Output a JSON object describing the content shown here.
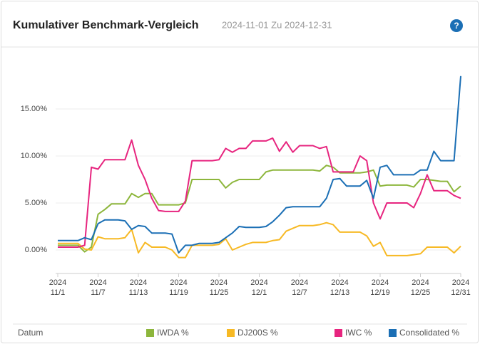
{
  "header": {
    "title": "Kumulativer Benchmark-Vergleich",
    "subtitle": "2024-11-01 Zu 2024-12-31",
    "help": "?"
  },
  "chart_data": {
    "type": "line",
    "x_label": "Datum",
    "x": [
      "2024-11-01",
      "2024-11-02",
      "2024-11-03",
      "2024-11-04",
      "2024-11-05",
      "2024-11-06",
      "2024-11-07",
      "2024-11-08",
      "2024-11-09",
      "2024-11-10",
      "2024-11-11",
      "2024-11-12",
      "2024-11-13",
      "2024-11-14",
      "2024-11-15",
      "2024-11-16",
      "2024-11-17",
      "2024-11-18",
      "2024-11-19",
      "2024-11-20",
      "2024-11-21",
      "2024-11-22",
      "2024-11-23",
      "2024-11-24",
      "2024-11-25",
      "2024-11-26",
      "2024-11-27",
      "2024-11-28",
      "2024-11-29",
      "2024-11-30",
      "2024-12-01",
      "2024-12-02",
      "2024-12-03",
      "2024-12-04",
      "2024-12-05",
      "2024-12-06",
      "2024-12-07",
      "2024-12-08",
      "2024-12-09",
      "2024-12-10",
      "2024-12-11",
      "2024-12-12",
      "2024-12-13",
      "2024-12-14",
      "2024-12-15",
      "2024-12-16",
      "2024-12-17",
      "2024-12-18",
      "2024-12-19",
      "2024-12-20",
      "2024-12-21",
      "2024-12-22",
      "2024-12-23",
      "2024-12-24",
      "2024-12-25",
      "2024-12-26",
      "2024-12-27",
      "2024-12-28",
      "2024-12-29",
      "2024-12-30",
      "2024-12-31"
    ],
    "xlim": [
      "2024-11-01",
      "2024-12-31"
    ],
    "xticks": [
      {
        "value": "2024-11-01",
        "label": "2024 11/1"
      },
      {
        "value": "2024-11-07",
        "label": "2024 11/7"
      },
      {
        "value": "2024-11-13",
        "label": "2024 11/13"
      },
      {
        "value": "2024-11-19",
        "label": "2024 11/19"
      },
      {
        "value": "2024-11-25",
        "label": "2024 11/25"
      },
      {
        "value": "2024-12-01",
        "label": "2024 12/1"
      },
      {
        "value": "2024-12-07",
        "label": "2024 12/7"
      },
      {
        "value": "2024-12-13",
        "label": "2024 12/13"
      },
      {
        "value": "2024-12-19",
        "label": "2024 12/19"
      },
      {
        "value": "2024-12-25",
        "label": "2024 12/25"
      },
      {
        "value": "2024-12-31",
        "label": "2024 12/31"
      }
    ],
    "ylim": [
      -2.5,
      20
    ],
    "yticks": [
      {
        "value": 0,
        "label": "0.00%"
      },
      {
        "value": 5,
        "label": "5.00%"
      },
      {
        "value": 10,
        "label": "10.00%"
      },
      {
        "value": 15,
        "label": "15.00%"
      }
    ],
    "grid": true,
    "legend_position": "bottom",
    "series": [
      {
        "name": "IWDA %",
        "color": "#8db63c",
        "values": [
          0.5,
          0.5,
          0.5,
          0.5,
          -0.2,
          0.3,
          3.8,
          4.3,
          4.9,
          4.9,
          4.9,
          6.0,
          5.6,
          6.0,
          6.0,
          4.8,
          4.8,
          4.8,
          4.8,
          5.0,
          7.5,
          7.5,
          7.5,
          7.5,
          7.5,
          6.6,
          7.2,
          7.5,
          7.5,
          7.5,
          7.5,
          8.3,
          8.5,
          8.5,
          8.5,
          8.5,
          8.5,
          8.5,
          8.5,
          8.4,
          9.0,
          8.8,
          8.2,
          8.2,
          8.2,
          8.2,
          8.3,
          8.5,
          6.8,
          6.9,
          6.9,
          6.9,
          6.9,
          6.7,
          7.5,
          7.5,
          7.4,
          7.3,
          7.3,
          6.2,
          6.8
        ]
      },
      {
        "name": "DJ200S %",
        "color": "#f7b924",
        "values": [
          0.7,
          0.7,
          0.7,
          0.7,
          0.1,
          0.0,
          1.4,
          1.2,
          1.2,
          1.2,
          1.3,
          2.2,
          -0.3,
          0.8,
          0.3,
          0.3,
          0.3,
          0.0,
          -0.8,
          -0.8,
          0.5,
          0.5,
          0.5,
          0.5,
          0.6,
          1.2,
          0.0,
          0.3,
          0.6,
          0.8,
          0.8,
          0.8,
          1.0,
          1.1,
          2.0,
          2.3,
          2.6,
          2.6,
          2.6,
          2.7,
          2.9,
          2.7,
          1.9,
          1.9,
          1.9,
          1.9,
          1.5,
          0.4,
          0.8,
          -0.6,
          -0.6,
          -0.6,
          -0.6,
          -0.5,
          -0.4,
          0.3,
          0.3,
          0.3,
          0.3,
          -0.3,
          0.4
        ]
      },
      {
        "name": "IWC %",
        "color": "#e7257f",
        "values": [
          0.3,
          0.3,
          0.3,
          0.3,
          0.5,
          8.8,
          8.6,
          9.6,
          9.6,
          9.6,
          9.6,
          11.7,
          9.0,
          7.5,
          5.5,
          4.2,
          4.1,
          4.1,
          4.1,
          5.2,
          9.5,
          9.5,
          9.5,
          9.5,
          9.6,
          10.8,
          10.4,
          10.8,
          10.8,
          11.6,
          11.6,
          11.6,
          11.9,
          10.5,
          11.5,
          10.4,
          11.1,
          11.1,
          11.1,
          10.8,
          11.0,
          8.3,
          8.3,
          8.3,
          8.3,
          10.0,
          9.5,
          5.0,
          3.3,
          5.0,
          5.0,
          5.0,
          5.0,
          4.5,
          6.0,
          8.0,
          6.3,
          6.3,
          6.3,
          5.8,
          5.5
        ]
      },
      {
        "name": "Consolidated %",
        "color": "#1b6fb5",
        "values": [
          1.0,
          1.0,
          1.0,
          1.0,
          1.3,
          1.1,
          2.8,
          3.2,
          3.2,
          3.2,
          3.1,
          2.2,
          2.6,
          2.5,
          1.8,
          1.8,
          1.8,
          1.7,
          -0.3,
          0.5,
          0.5,
          0.7,
          0.7,
          0.7,
          0.8,
          1.3,
          1.8,
          2.5,
          2.4,
          2.4,
          2.4,
          2.5,
          3.0,
          3.7,
          4.5,
          4.6,
          4.6,
          4.6,
          4.6,
          4.6,
          5.5,
          7.5,
          7.6,
          6.8,
          6.8,
          6.8,
          7.4,
          5.5,
          8.8,
          9.0,
          8.0,
          8.0,
          8.0,
          8.0,
          8.5,
          8.5,
          10.5,
          9.5,
          9.5,
          9.5,
          18.5
        ]
      }
    ]
  }
}
